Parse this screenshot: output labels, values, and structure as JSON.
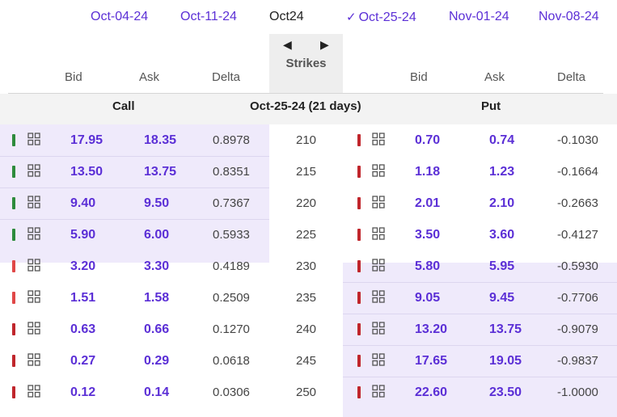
{
  "expirations": [
    {
      "label": "Oct-04-24",
      "current": false,
      "checked": false
    },
    {
      "label": "Oct-11-24",
      "current": false,
      "checked": false
    },
    {
      "label": "Oct24",
      "current": true,
      "checked": false
    },
    {
      "label": "Oct-25-24",
      "current": false,
      "checked": true
    },
    {
      "label": "Nov-01-24",
      "current": false,
      "checked": false
    },
    {
      "label": "Nov-08-24",
      "current": false,
      "checked": false
    }
  ],
  "check_glyph": "✓",
  "strikes_header": {
    "label": "Strikes",
    "prev_icon": "arrow-left-icon",
    "next_icon": "arrow-right-icon",
    "prev_glyph": "◀",
    "next_glyph": "▶"
  },
  "columns": {
    "bid": "Bid",
    "ask": "Ask",
    "delta": "Delta"
  },
  "section": {
    "call": "Call",
    "put": "Put",
    "expiry": "Oct-25-24 (21 days)"
  },
  "colors": {
    "accent": "#5b2fd6",
    "bar_green": "#2e8b3d",
    "bar_red": "#c0262c",
    "bar_lightred": "#e04848",
    "itm_shade": "#efeafb"
  },
  "rows": [
    {
      "strike": "210",
      "call": {
        "bid": "17.95",
        "ask": "18.35",
        "delta": "0.8978",
        "bar": "green",
        "itm": true
      },
      "put": {
        "bid": "0.70",
        "ask": "0.74",
        "delta": "-0.1030",
        "bar": "red",
        "itm": false
      }
    },
    {
      "strike": "215",
      "call": {
        "bid": "13.50",
        "ask": "13.75",
        "delta": "0.8351",
        "bar": "green",
        "itm": true
      },
      "put": {
        "bid": "1.18",
        "ask": "1.23",
        "delta": "-0.1664",
        "bar": "red",
        "itm": false
      }
    },
    {
      "strike": "220",
      "call": {
        "bid": "9.40",
        "ask": "9.50",
        "delta": "0.7367",
        "bar": "green",
        "itm": true
      },
      "put": {
        "bid": "2.01",
        "ask": "2.10",
        "delta": "-0.2663",
        "bar": "red",
        "itm": false
      }
    },
    {
      "strike": "225",
      "call": {
        "bid": "5.90",
        "ask": "6.00",
        "delta": "0.5933",
        "bar": "green",
        "itm": true
      },
      "put": {
        "bid": "3.50",
        "ask": "3.60",
        "delta": "-0.4127",
        "bar": "red",
        "itm": false
      }
    },
    {
      "strike": "230",
      "call": {
        "bid": "3.20",
        "ask": "3.30",
        "delta": "0.4189",
        "bar": "lightred",
        "itm": false
      },
      "put": {
        "bid": "5.80",
        "ask": "5.95",
        "delta": "-0.5930",
        "bar": "red",
        "itm": true
      }
    },
    {
      "strike": "235",
      "call": {
        "bid": "1.51",
        "ask": "1.58",
        "delta": "0.2509",
        "bar": "lightred",
        "itm": false
      },
      "put": {
        "bid": "9.05",
        "ask": "9.45",
        "delta": "-0.7706",
        "bar": "red",
        "itm": true
      }
    },
    {
      "strike": "240",
      "call": {
        "bid": "0.63",
        "ask": "0.66",
        "delta": "0.1270",
        "bar": "red",
        "itm": false
      },
      "put": {
        "bid": "13.20",
        "ask": "13.75",
        "delta": "-0.9079",
        "bar": "red",
        "itm": true
      }
    },
    {
      "strike": "245",
      "call": {
        "bid": "0.27",
        "ask": "0.29",
        "delta": "0.0618",
        "bar": "red",
        "itm": false
      },
      "put": {
        "bid": "17.65",
        "ask": "19.05",
        "delta": "-0.9837",
        "bar": "red",
        "itm": true
      }
    },
    {
      "strike": "250",
      "call": {
        "bid": "0.12",
        "ask": "0.14",
        "delta": "0.0306",
        "bar": "red",
        "itm": false
      },
      "put": {
        "bid": "22.60",
        "ask": "23.50",
        "delta": "-1.0000",
        "bar": "red",
        "itm": true
      }
    }
  ],
  "row_icon": "grid-icon"
}
